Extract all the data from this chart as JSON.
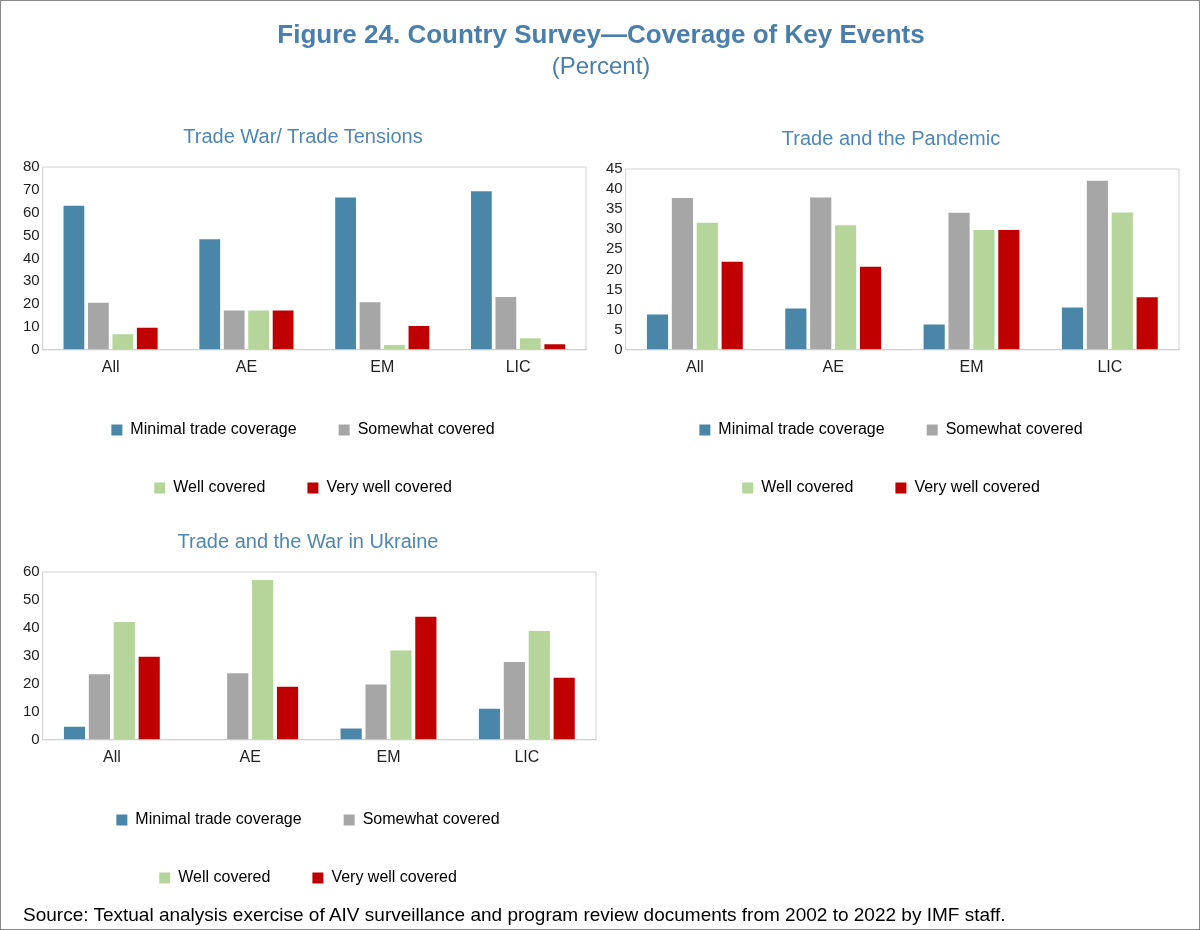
{
  "chart_data": [
    {
      "type": "other",
      "title": "Figure 24. Country Survey—Coverage of Key Events",
      "subtitle": "(Percent)",
      "annotations": [
        "Source: Textual analysis exercise of AIV surveillance and program review documents from 2002 to 2022 by IMF staff."
      ]
    },
    {
      "type": "bar",
      "title": "Trade War/ Trade Tensions",
      "categories": [
        "All",
        "AE",
        "EM",
        "LIC"
      ],
      "ylim": [
        0,
        80
      ],
      "yticks": [
        0,
        10,
        20,
        30,
        40,
        50,
        60,
        70,
        80
      ],
      "grid": false,
      "legend": "bottom",
      "series": [
        {
          "name": "Minimal trade coverage",
          "color": "#4a86a8",
          "values": [
            63,
            48.4,
            66.7,
            69.4
          ]
        },
        {
          "name": "Somewhat covered",
          "color": "#a6a6a6",
          "values": [
            20.6,
            17.2,
            20.8,
            23.1
          ]
        },
        {
          "name": "Well covered",
          "color": "#b5d59a",
          "values": [
            6.8,
            17.2,
            2.1,
            5.1
          ]
        },
        {
          "name": "Very well covered",
          "color": "#c00000",
          "values": [
            9.6,
            17.2,
            10.4,
            2.4
          ]
        }
      ]
    },
    {
      "type": "bar",
      "title": "Trade and the Pandemic",
      "categories": [
        "All",
        "AE",
        "EM",
        "LIC"
      ],
      "ylim": [
        0,
        45
      ],
      "yticks": [
        0,
        5,
        10,
        15,
        20,
        25,
        30,
        35,
        40,
        45
      ],
      "grid": false,
      "legend": "bottom",
      "series": [
        {
          "name": "Minimal trade coverage",
          "color": "#4a86a8",
          "values": [
            8.8,
            10.3,
            6.3,
            10.5
          ]
        },
        {
          "name": "Somewhat covered",
          "color": "#a6a6a6",
          "values": [
            37.8,
            37.9,
            34.1,
            42.1
          ]
        },
        {
          "name": "Well covered",
          "color": "#b5d59a",
          "values": [
            31.6,
            31.0,
            29.8,
            34.2
          ]
        },
        {
          "name": "Very well covered",
          "color": "#c00000",
          "values": [
            21.9,
            20.7,
            29.8,
            13.1
          ]
        }
      ]
    },
    {
      "type": "bar",
      "title": "Trade and the War in Ukraine",
      "categories": [
        "All",
        "AE",
        "EM",
        "LIC"
      ],
      "ylim": [
        0,
        60
      ],
      "yticks": [
        0,
        10,
        20,
        30,
        40,
        50,
        60
      ],
      "grid": false,
      "legend": "bottom",
      "series": [
        {
          "name": "Minimal trade coverage",
          "color": "#4a86a8",
          "values": [
            4.7,
            0,
            4.0,
            11.1
          ]
        },
        {
          "name": "Somewhat covered",
          "color": "#a6a6a6",
          "values": [
            23.4,
            23.8,
            19.8,
            27.8
          ]
        },
        {
          "name": "Well covered",
          "color": "#b5d59a",
          "values": [
            42.1,
            57.1,
            31.9,
            38.9
          ]
        },
        {
          "name": "Very well covered",
          "color": "#c00000",
          "values": [
            29.7,
            19.0,
            44.0,
            22.2
          ]
        }
      ]
    }
  ]
}
